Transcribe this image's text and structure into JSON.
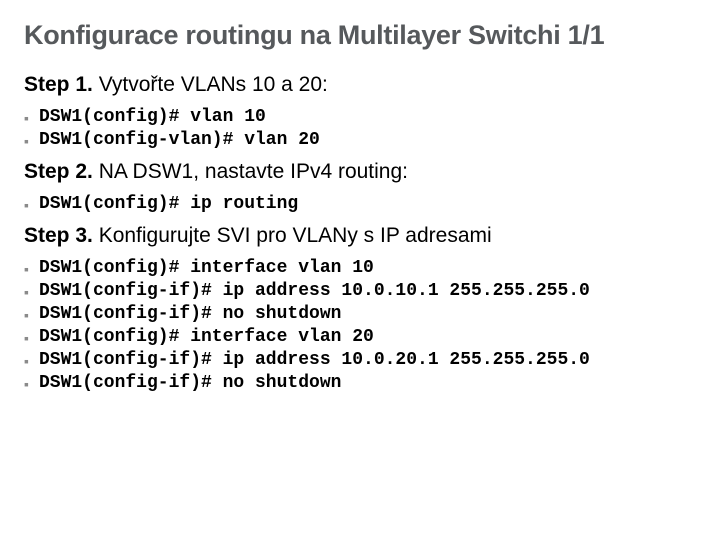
{
  "title": "Konfigurace routingu na Multilayer Switchi 1/1",
  "steps": [
    {
      "label": "Step 1.",
      "desc": " Vytvořte VLANs 10 a 20:",
      "commands": [
        "DSW1(config)# vlan 10",
        "DSW1(config-vlan)# vlan 20"
      ]
    },
    {
      "label": "Step 2.",
      "desc": " NA DSW1, nastavte IPv4 routing:",
      "commands": [
        "DSW1(config)# ip routing"
      ]
    },
    {
      "label": "Step 3.",
      "desc": " Konfigurujte SVI pro VLANy s IP adresami",
      "commands": [
        "DSW1(config)# interface vlan 10",
        "DSW1(config-if)# ip address 10.0.10.1 255.255.255.0",
        "DSW1(config-if)# no shutdown",
        "DSW1(config)# interface vlan 20",
        "DSW1(config-if)# ip address 10.0.20.1 255.255.255.0",
        "DSW1(config-if)# no shutdown"
      ]
    }
  ],
  "colors": {
    "title": "#56595c",
    "text": "#000000",
    "bullet": "#8a8a8a",
    "background": "#ffffff"
  },
  "bullet_char": "▪"
}
